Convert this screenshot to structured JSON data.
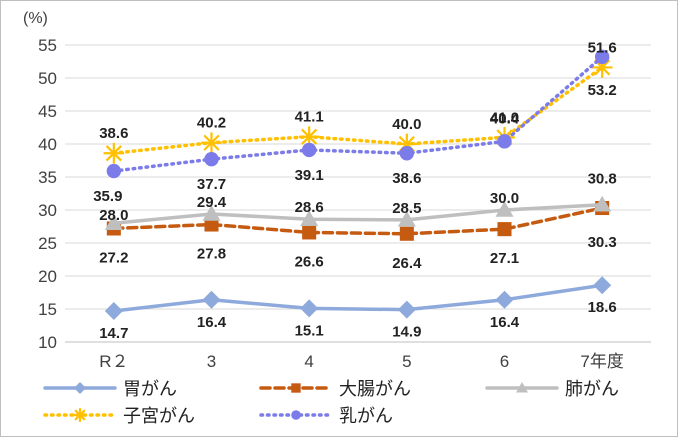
{
  "chart_data": {
    "type": "line",
    "ylabel": "(%)",
    "ylim": [
      10,
      55
    ],
    "yticks": [
      10,
      15,
      20,
      25,
      30,
      35,
      40,
      45,
      50,
      55
    ],
    "categories": [
      "R２",
      "3",
      "4",
      "5",
      "6",
      "7年度"
    ],
    "grid": true,
    "legend_position": "bottom",
    "series": [
      {
        "name": "胃がん",
        "values": [
          14.7,
          16.4,
          15.1,
          14.9,
          16.4,
          18.6
        ],
        "color": "#8EA9DB",
        "style": "solid",
        "marker": "diamond"
      },
      {
        "name": "大腸がん",
        "values": [
          27.2,
          27.8,
          26.6,
          26.4,
          27.1,
          30.3
        ],
        "color": "#C55A11",
        "style": "dashed",
        "marker": "square"
      },
      {
        "name": "肺がん",
        "values": [
          28.0,
          29.4,
          28.6,
          28.5,
          30.0,
          30.8
        ],
        "color": "#BFBFBF",
        "style": "solid",
        "marker": "triangle"
      },
      {
        "name": "子宮がん",
        "values": [
          38.6,
          40.2,
          41.1,
          40.0,
          41.0,
          51.6
        ],
        "color": "#FFC000",
        "style": "dotted",
        "marker": "star"
      },
      {
        "name": "乳がん",
        "values": [
          35.9,
          37.7,
          39.1,
          38.6,
          40.4,
          53.2
        ],
        "color": "#7B7BEA",
        "style": "dotted",
        "marker": "circle"
      }
    ]
  }
}
